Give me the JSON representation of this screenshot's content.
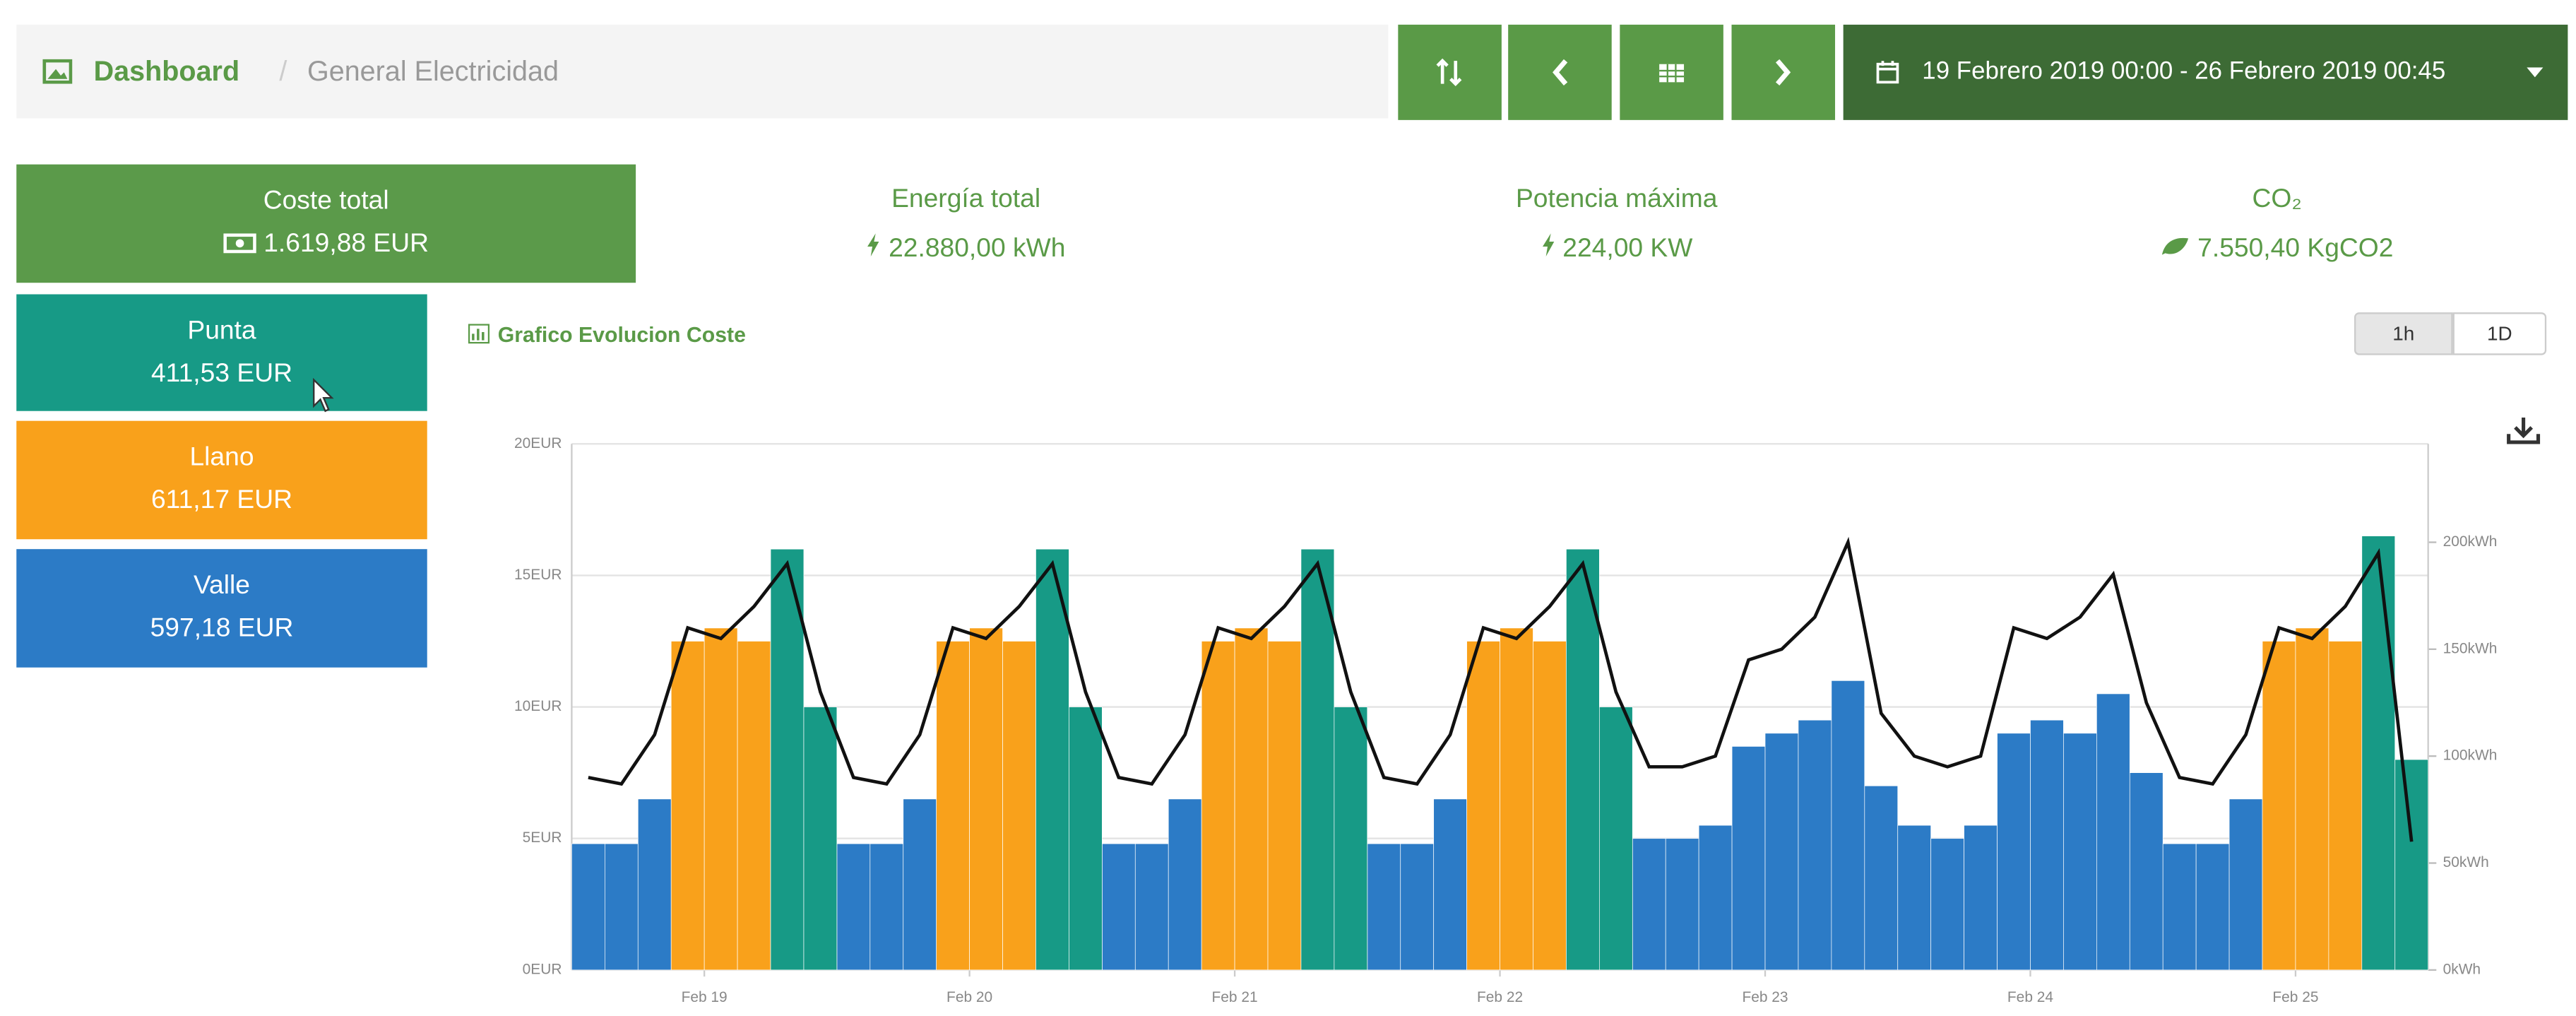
{
  "header": {
    "title": "Dashboard",
    "page": "General Electricidad",
    "date_range": "19 Febrero 2019 00:00 - 26 Febrero 2019 00:45"
  },
  "summary": [
    {
      "label": "Coste total",
      "value": "1.619,88 EUR"
    },
    {
      "label": "Energía total",
      "value": "22.880,00 kWh"
    },
    {
      "label": "Potencia máxima",
      "value": "224,00 KW"
    },
    {
      "label": "CO₂",
      "value": "7.550,40 KgCO2"
    }
  ],
  "tariff_totals": [
    "411,53 EUR",
    "611,17 EUR",
    "597,18 EUR"
  ],
  "chart_title": "Grafico Evolucion Coste",
  "range_buttons": [
    "1h",
    "1D"
  ],
  "chart_data": {
    "type": "bar",
    "title": "Grafico Evolucion Coste",
    "x": [
      0,
      3,
      6,
      9,
      12,
      15,
      18,
      21,
      24,
      27,
      30,
      33,
      36,
      39,
      42,
      45,
      48,
      51,
      54,
      57,
      60,
      63,
      66,
      69,
      72,
      75,
      78,
      81,
      84,
      87,
      90,
      93,
      96,
      99,
      102,
      105,
      108,
      111,
      114,
      117,
      120,
      123,
      126,
      129,
      132,
      135,
      138,
      141,
      144,
      147,
      150,
      153,
      156,
      159,
      162,
      165
    ],
    "xlim": [
      0,
      168
    ],
    "xticks": [
      {
        "value": 12,
        "label": "Feb 19"
      },
      {
        "value": 36,
        "label": "Feb 20"
      },
      {
        "value": 60,
        "label": "Feb 21"
      },
      {
        "value": 84,
        "label": "Feb 22"
      },
      {
        "value": 108,
        "label": "Feb 23"
      },
      {
        "value": 132,
        "label": "Feb 24"
      },
      {
        "value": 156,
        "label": "Feb 25"
      }
    ],
    "ylim": [
      0,
      20
    ],
    "yticks": [
      {
        "value": 0,
        "label": "0EUR"
      },
      {
        "value": 5,
        "label": "5EUR"
      },
      {
        "value": 10,
        "label": "10EUR"
      },
      {
        "value": 15,
        "label": "15EUR"
      },
      {
        "value": 20,
        "label": "20EUR"
      }
    ],
    "y2lim": [
      0,
      246
    ],
    "y2ticks": [
      {
        "value": 0,
        "label": "0kWh"
      },
      {
        "value": 50,
        "label": "50kWh"
      },
      {
        "value": 100,
        "label": "100kWh"
      },
      {
        "value": 150,
        "label": "150kWh"
      },
      {
        "value": 200,
        "label": "200kWh"
      }
    ],
    "grid": true,
    "series": [
      {
        "name": "Valle",
        "color": "#2c7bc6",
        "values": [
          4.8,
          4.8,
          6.5,
          null,
          null,
          null,
          null,
          null,
          4.8,
          4.8,
          6.5,
          null,
          null,
          null,
          null,
          null,
          4.8,
          4.8,
          6.5,
          null,
          null,
          null,
          null,
          null,
          4.8,
          4.8,
          6.5,
          null,
          null,
          null,
          null,
          null,
          5,
          5,
          5.5,
          8.5,
          9,
          9.5,
          11,
          7,
          5.5,
          5,
          5.5,
          9,
          9.5,
          9,
          10.5,
          7.5,
          4.8,
          4.8,
          6.5,
          null,
          null,
          null,
          null,
          null
        ]
      },
      {
        "name": "Llano",
        "color": "#f9a11b",
        "values": [
          null,
          null,
          null,
          12.5,
          13,
          12.5,
          null,
          null,
          null,
          null,
          null,
          12.5,
          13,
          12.5,
          null,
          null,
          null,
          null,
          null,
          12.5,
          13,
          12.5,
          null,
          null,
          null,
          null,
          null,
          12.5,
          13,
          12.5,
          null,
          null,
          null,
          null,
          null,
          null,
          null,
          null,
          null,
          null,
          null,
          null,
          null,
          null,
          null,
          null,
          null,
          null,
          null,
          null,
          null,
          12.5,
          13,
          12.5,
          null,
          null
        ]
      },
      {
        "name": "Punta",
        "color": "#179a86",
        "values": [
          null,
          null,
          null,
          null,
          null,
          null,
          16,
          10,
          null,
          null,
          null,
          null,
          null,
          null,
          16,
          10,
          null,
          null,
          null,
          null,
          null,
          null,
          16,
          10,
          null,
          null,
          null,
          null,
          null,
          null,
          16,
          10,
          null,
          null,
          null,
          null,
          null,
          null,
          null,
          null,
          null,
          null,
          null,
          null,
          null,
          null,
          null,
          null,
          null,
          null,
          null,
          null,
          null,
          null,
          16.5,
          8
        ]
      },
      {
        "type": "line",
        "axis": "y2",
        "color": "#111111",
        "values": [
          90,
          87,
          110,
          160,
          155,
          170,
          190,
          130,
          90,
          87,
          110,
          160,
          155,
          170,
          190,
          130,
          90,
          87,
          110,
          160,
          155,
          170,
          190,
          130,
          90,
          87,
          110,
          160,
          155,
          170,
          190,
          130,
          95,
          95,
          100,
          145,
          150,
          165,
          200,
          120,
          100,
          95,
          100,
          160,
          155,
          165,
          185,
          125,
          90,
          87,
          110,
          160,
          155,
          170,
          195,
          60
        ]
      }
    ]
  }
}
